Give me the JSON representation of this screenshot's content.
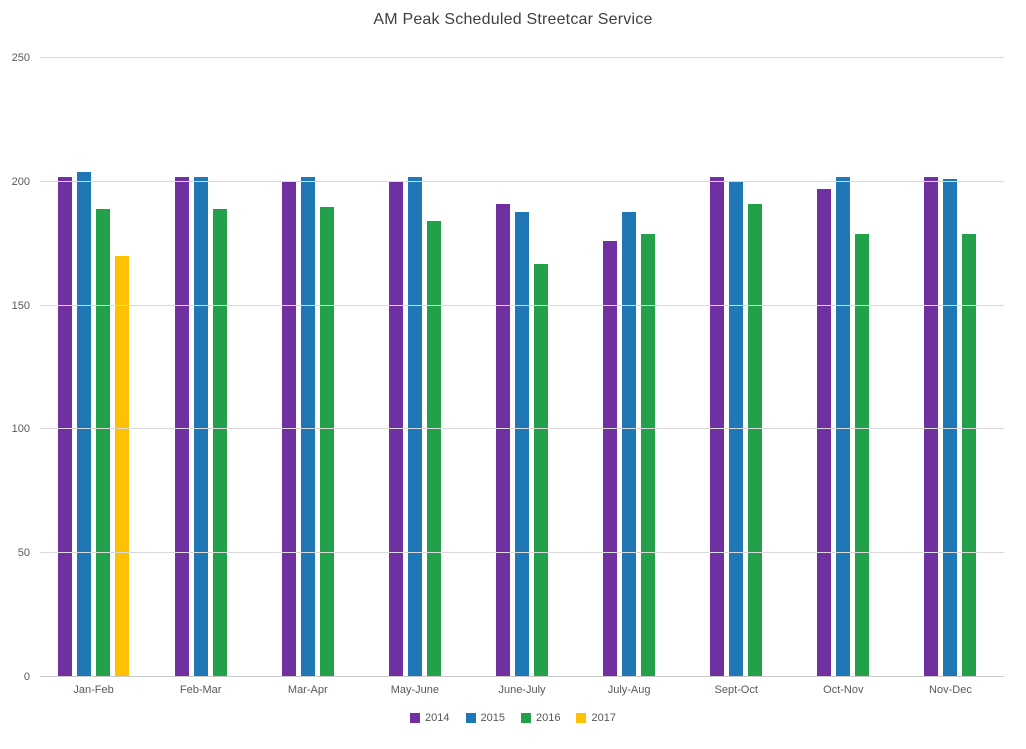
{
  "title": "AM Peak Scheduled Streetcar Service",
  "chart_data": {
    "type": "bar",
    "title": "AM Peak Scheduled Streetcar Service",
    "categories": [
      "Jan-Feb",
      "Feb-Mar",
      "Mar-Apr",
      "May-June",
      "June-July",
      "July-Aug",
      "Sept-Oct",
      "Oct-Nov",
      "Nov-Dec"
    ],
    "series": [
      {
        "name": "2014",
        "color": "#7030A0",
        "values": [
          202,
          202,
          200,
          200,
          191,
          176,
          202,
          197,
          202
        ]
      },
      {
        "name": "2015",
        "color": "#1F78B5",
        "values": [
          204,
          202,
          202,
          202,
          188,
          188,
          200,
          202,
          201
        ]
      },
      {
        "name": "2016",
        "color": "#22A14A",
        "values": [
          189,
          189,
          190,
          184,
          167,
          179,
          191,
          179,
          179
        ]
      },
      {
        "name": "2017",
        "color": "#FFC000",
        "values": [
          170,
          null,
          null,
          null,
          null,
          null,
          null,
          null,
          null
        ]
      }
    ],
    "xlabel": "",
    "ylabel": "",
    "ylim": [
      0,
      250
    ],
    "yticks": [
      0,
      50,
      100,
      150,
      200,
      250
    ],
    "grid": true,
    "legend_position": "bottom",
    "style": {
      "background": "#FFFFFF",
      "gridline_color": "#D9D9D9",
      "axis_line_color": "#C9C9C9",
      "tick_label_color": "#595959",
      "title_color": "#404040"
    }
  }
}
